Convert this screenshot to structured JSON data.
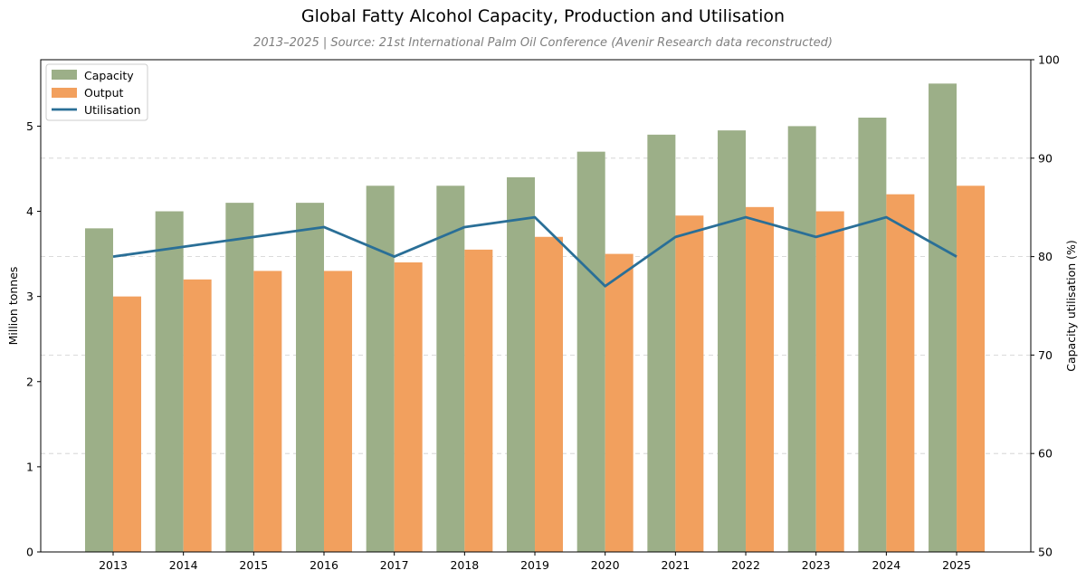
{
  "chart_data": {
    "type": "bar",
    "title": "Global Fatty Alcohol Capacity, Production and Utilisation",
    "subtitle": "2013–2025 | Source: 21st International Palm Oil Conference (Avenir Research data reconstructed)",
    "categories": [
      "2013",
      "2014",
      "2015",
      "2016",
      "2017",
      "2018",
      "2019",
      "2020",
      "2021",
      "2022",
      "2023",
      "2024",
      "2025"
    ],
    "series": [
      {
        "name": "Capacity",
        "type": "bar",
        "axis": "left",
        "color": "#9caf88",
        "values": [
          3.8,
          4.0,
          4.1,
          4.1,
          4.3,
          4.3,
          4.4,
          4.7,
          4.9,
          4.95,
          5.0,
          5.1,
          5.5
        ]
      },
      {
        "name": "Output",
        "type": "bar",
        "axis": "left",
        "color": "#f2a05e",
        "values": [
          3.0,
          3.2,
          3.3,
          3.3,
          3.4,
          3.55,
          3.7,
          3.5,
          3.95,
          4.05,
          4.0,
          4.2,
          4.3
        ]
      },
      {
        "name": "Utilisation",
        "type": "line",
        "axis": "right",
        "color": "#2a6f97",
        "values": [
          80,
          81,
          82,
          83,
          80,
          83,
          84,
          77,
          82,
          84,
          82,
          84,
          80
        ]
      }
    ],
    "ylabel": "Million tonnes",
    "y2label": "Capacity utilisation (%)",
    "ylim": [
      0,
      5.78
    ],
    "y2lim": [
      50,
      100
    ],
    "yticks": [
      0,
      1,
      2,
      3,
      4,
      5
    ],
    "y2ticks": [
      50,
      60,
      70,
      80,
      90,
      100
    ],
    "grid": true,
    "legend_position": "top-left"
  }
}
